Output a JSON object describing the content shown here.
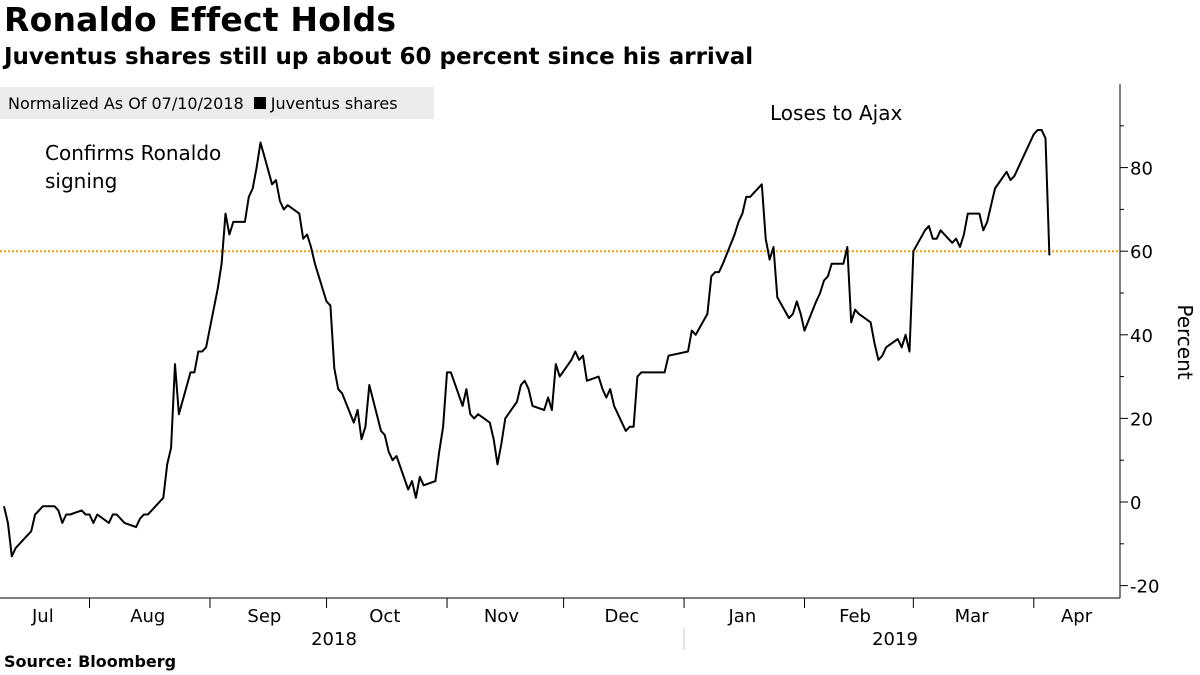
{
  "title": "Ronaldo Effect Holds",
  "subtitle": "Juventus shares still up about 60 percent since his arrival",
  "legend": {
    "normalized_text": "Normalized As Of 07/10/2018",
    "series_label": "Juventus shares"
  },
  "source": "Source:  Bloomberg",
  "annotations": {
    "confirms_line1": "Confirms Ronaldo",
    "confirms_line2": "signing",
    "loses": "Loses to Ajax"
  },
  "colors": {
    "line": "#000000",
    "reference": "#f0a30a"
  },
  "chart_data": {
    "type": "line",
    "title": "Ronaldo Effect Holds",
    "subtitle": "Juventus shares still up about 60 percent since his arrival",
    "ylabel": "Percent",
    "ylim": [
      -25,
      100
    ],
    "y_ticks": [
      -20,
      0,
      20,
      40,
      60,
      80
    ],
    "x_tick_labels": [
      "Jul",
      "Aug",
      "Sep",
      "Oct",
      "Nov",
      "Dec",
      "Jan",
      "Feb",
      "Mar",
      "Apr"
    ],
    "year_labels": [
      "2018",
      "2019"
    ],
    "reference_line": 60,
    "x_start": "2018-07-10",
    "x_end": "2019-04-17",
    "series": [
      {
        "name": "Juventus shares",
        "points": [
          [
            "2018-07-10",
            -1
          ],
          [
            "2018-07-11",
            -5
          ],
          [
            "2018-07-12",
            -13
          ],
          [
            "2018-07-13",
            -11
          ],
          [
            "2018-07-16",
            -8
          ],
          [
            "2018-07-17",
            -7
          ],
          [
            "2018-07-18",
            -3
          ],
          [
            "2018-07-19",
            -2
          ],
          [
            "2018-07-20",
            -1
          ],
          [
            "2018-07-23",
            -1
          ],
          [
            "2018-07-24",
            -2
          ],
          [
            "2018-07-25",
            -5
          ],
          [
            "2018-07-26",
            -3
          ],
          [
            "2018-07-27",
            -3
          ],
          [
            "2018-07-30",
            -2
          ],
          [
            "2018-07-31",
            -3
          ],
          [
            "2018-08-01",
            -3
          ],
          [
            "2018-08-02",
            -5
          ],
          [
            "2018-08-03",
            -3
          ],
          [
            "2018-08-06",
            -5
          ],
          [
            "2018-08-07",
            -3
          ],
          [
            "2018-08-08",
            -3
          ],
          [
            "2018-08-09",
            -4
          ],
          [
            "2018-08-10",
            -5
          ],
          [
            "2018-08-13",
            -6
          ],
          [
            "2018-08-14",
            -4
          ],
          [
            "2018-08-15",
            -3
          ],
          [
            "2018-08-16",
            -3
          ],
          [
            "2018-08-17",
            -2
          ],
          [
            "2018-08-20",
            1
          ],
          [
            "2018-08-21",
            9
          ],
          [
            "2018-08-22",
            13
          ],
          [
            "2018-08-23",
            33
          ],
          [
            "2018-08-24",
            21
          ],
          [
            "2018-08-27",
            31
          ],
          [
            "2018-08-28",
            31
          ],
          [
            "2018-08-29",
            36
          ],
          [
            "2018-08-30",
            36
          ],
          [
            "2018-08-31",
            37
          ],
          [
            "2018-09-03",
            51
          ],
          [
            "2018-09-04",
            57
          ],
          [
            "2018-09-05",
            69
          ],
          [
            "2018-09-06",
            64
          ],
          [
            "2018-09-07",
            67
          ],
          [
            "2018-09-10",
            67
          ],
          [
            "2018-09-11",
            73
          ],
          [
            "2018-09-12",
            75
          ],
          [
            "2018-09-13",
            80
          ],
          [
            "2018-09-14",
            86
          ],
          [
            "2018-09-17",
            76
          ],
          [
            "2018-09-18",
            77
          ],
          [
            "2018-09-19",
            72
          ],
          [
            "2018-09-20",
            70
          ],
          [
            "2018-09-21",
            71
          ],
          [
            "2018-09-24",
            69
          ],
          [
            "2018-09-25",
            63
          ],
          [
            "2018-09-26",
            64
          ],
          [
            "2018-09-27",
            61
          ],
          [
            "2018-09-28",
            57
          ],
          [
            "2018-10-01",
            48
          ],
          [
            "2018-10-02",
            47
          ],
          [
            "2018-10-03",
            32
          ],
          [
            "2018-10-04",
            27
          ],
          [
            "2018-10-05",
            26
          ],
          [
            "2018-10-08",
            19
          ],
          [
            "2018-10-09",
            22
          ],
          [
            "2018-10-10",
            15
          ],
          [
            "2018-10-11",
            18
          ],
          [
            "2018-10-12",
            28
          ],
          [
            "2018-10-15",
            17
          ],
          [
            "2018-10-16",
            16
          ],
          [
            "2018-10-17",
            12
          ],
          [
            "2018-10-18",
            10
          ],
          [
            "2018-10-19",
            11
          ],
          [
            "2018-10-22",
            3
          ],
          [
            "2018-10-23",
            5
          ],
          [
            "2018-10-24",
            1
          ],
          [
            "2018-10-25",
            6
          ],
          [
            "2018-10-26",
            4
          ],
          [
            "2018-10-29",
            5
          ],
          [
            "2018-10-30",
            12
          ],
          [
            "2018-10-31",
            18
          ],
          [
            "2018-11-01",
            31
          ],
          [
            "2018-11-02",
            31
          ],
          [
            "2018-11-05",
            23
          ],
          [
            "2018-11-06",
            27
          ],
          [
            "2018-11-07",
            21
          ],
          [
            "2018-11-08",
            20
          ],
          [
            "2018-11-09",
            21
          ],
          [
            "2018-11-12",
            19
          ],
          [
            "2018-11-13",
            15
          ],
          [
            "2018-11-14",
            9
          ],
          [
            "2018-11-15",
            14
          ],
          [
            "2018-11-16",
            20
          ],
          [
            "2018-11-19",
            24
          ],
          [
            "2018-11-20",
            28
          ],
          [
            "2018-11-21",
            29
          ],
          [
            "2018-11-22",
            27
          ],
          [
            "2018-11-23",
            23
          ],
          [
            "2018-11-26",
            22
          ],
          [
            "2018-11-27",
            25
          ],
          [
            "2018-11-28",
            22
          ],
          [
            "2018-11-29",
            33
          ],
          [
            "2018-11-30",
            30
          ],
          [
            "2018-12-03",
            34
          ],
          [
            "2018-12-04",
            36
          ],
          [
            "2018-12-05",
            34
          ],
          [
            "2018-12-06",
            35
          ],
          [
            "2018-12-07",
            29
          ],
          [
            "2018-12-10",
            30
          ],
          [
            "2018-12-11",
            27
          ],
          [
            "2018-12-12",
            25
          ],
          [
            "2018-12-13",
            27
          ],
          [
            "2018-12-14",
            23
          ],
          [
            "2018-12-17",
            17
          ],
          [
            "2018-12-18",
            18
          ],
          [
            "2018-12-19",
            18
          ],
          [
            "2018-12-20",
            30
          ],
          [
            "2018-12-21",
            31
          ],
          [
            "2018-12-27",
            31
          ],
          [
            "2018-12-28",
            35
          ],
          [
            "2019-01-02",
            36
          ],
          [
            "2019-01-03",
            41
          ],
          [
            "2019-01-04",
            40
          ],
          [
            "2019-01-07",
            45
          ],
          [
            "2019-01-08",
            54
          ],
          [
            "2019-01-09",
            55
          ],
          [
            "2019-01-10",
            55
          ],
          [
            "2019-01-11",
            57
          ],
          [
            "2019-01-14",
            64
          ],
          [
            "2019-01-15",
            67
          ],
          [
            "2019-01-16",
            69
          ],
          [
            "2019-01-17",
            73
          ],
          [
            "2019-01-18",
            73
          ],
          [
            "2019-01-21",
            76
          ],
          [
            "2019-01-22",
            63
          ],
          [
            "2019-01-23",
            58
          ],
          [
            "2019-01-24",
            61
          ],
          [
            "2019-01-25",
            49
          ],
          [
            "2019-01-28",
            44
          ],
          [
            "2019-01-29",
            45
          ],
          [
            "2019-01-30",
            48
          ],
          [
            "2019-01-31",
            45
          ],
          [
            "2019-02-01",
            41
          ],
          [
            "2019-02-04",
            48
          ],
          [
            "2019-02-05",
            50
          ],
          [
            "2019-02-06",
            53
          ],
          [
            "2019-02-07",
            54
          ],
          [
            "2019-02-08",
            57
          ],
          [
            "2019-02-11",
            57
          ],
          [
            "2019-02-12",
            61
          ],
          [
            "2019-02-13",
            43
          ],
          [
            "2019-02-14",
            46
          ],
          [
            "2019-02-15",
            45
          ],
          [
            "2019-02-18",
            43
          ],
          [
            "2019-02-19",
            38
          ],
          [
            "2019-02-20",
            34
          ],
          [
            "2019-02-21",
            35
          ],
          [
            "2019-02-22",
            37
          ],
          [
            "2019-02-25",
            39
          ],
          [
            "2019-02-26",
            37
          ],
          [
            "2019-02-27",
            40
          ],
          [
            "2019-02-28",
            36
          ],
          [
            "2019-03-01",
            60
          ],
          [
            "2019-03-04",
            65
          ],
          [
            "2019-03-05",
            66
          ],
          [
            "2019-03-06",
            63
          ],
          [
            "2019-03-07",
            63
          ],
          [
            "2019-03-08",
            65
          ],
          [
            "2019-03-11",
            62
          ],
          [
            "2019-03-12",
            63
          ],
          [
            "2019-03-13",
            61
          ],
          [
            "2019-03-14",
            64
          ],
          [
            "2019-03-15",
            69
          ],
          [
            "2019-03-18",
            69
          ],
          [
            "2019-03-19",
            65
          ],
          [
            "2019-03-20",
            67
          ],
          [
            "2019-03-21",
            71
          ],
          [
            "2019-03-22",
            75
          ],
          [
            "2019-03-25",
            79
          ],
          [
            "2019-03-26",
            77
          ],
          [
            "2019-03-27",
            78
          ],
          [
            "2019-03-28",
            80
          ],
          [
            "2019-04-01",
            88
          ],
          [
            "2019-04-02",
            89
          ],
          [
            "2019-04-03",
            89
          ],
          [
            "2019-04-04",
            87
          ],
          [
            "2019-04-05",
            59
          ]
        ]
      }
    ]
  }
}
